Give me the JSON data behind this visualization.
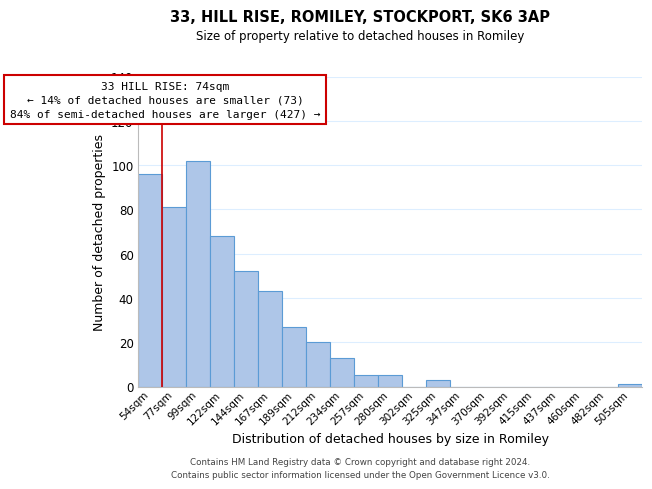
{
  "title": "33, HILL RISE, ROMILEY, STOCKPORT, SK6 3AP",
  "subtitle": "Size of property relative to detached houses in Romiley",
  "xlabel": "Distribution of detached houses by size in Romiley",
  "ylabel": "Number of detached properties",
  "categories": [
    "54sqm",
    "77sqm",
    "99sqm",
    "122sqm",
    "144sqm",
    "167sqm",
    "189sqm",
    "212sqm",
    "234sqm",
    "257sqm",
    "280sqm",
    "302sqm",
    "325sqm",
    "347sqm",
    "370sqm",
    "392sqm",
    "415sqm",
    "437sqm",
    "460sqm",
    "482sqm",
    "505sqm"
  ],
  "values": [
    96,
    81,
    102,
    68,
    52,
    43,
    27,
    20,
    13,
    5,
    5,
    0,
    3,
    0,
    0,
    0,
    0,
    0,
    0,
    0,
    1
  ],
  "bar_color": "#aec6e8",
  "bar_edge_color": "#5b9bd5",
  "marker_color": "#cc0000",
  "ylim": [
    0,
    140
  ],
  "yticks": [
    0,
    20,
    40,
    60,
    80,
    100,
    120,
    140
  ],
  "annotation_title": "33 HILL RISE: 74sqm",
  "annotation_line1": "← 14% of detached houses are smaller (73)",
  "annotation_line2": "84% of semi-detached houses are larger (427) →",
  "annotation_box_color": "#ffffff",
  "annotation_box_edge": "#cc0000",
  "footer1": "Contains HM Land Registry data © Crown copyright and database right 2024.",
  "footer2": "Contains public sector information licensed under the Open Government Licence v3.0.",
  "background_color": "#ffffff",
  "grid_color": "#ddeeff"
}
